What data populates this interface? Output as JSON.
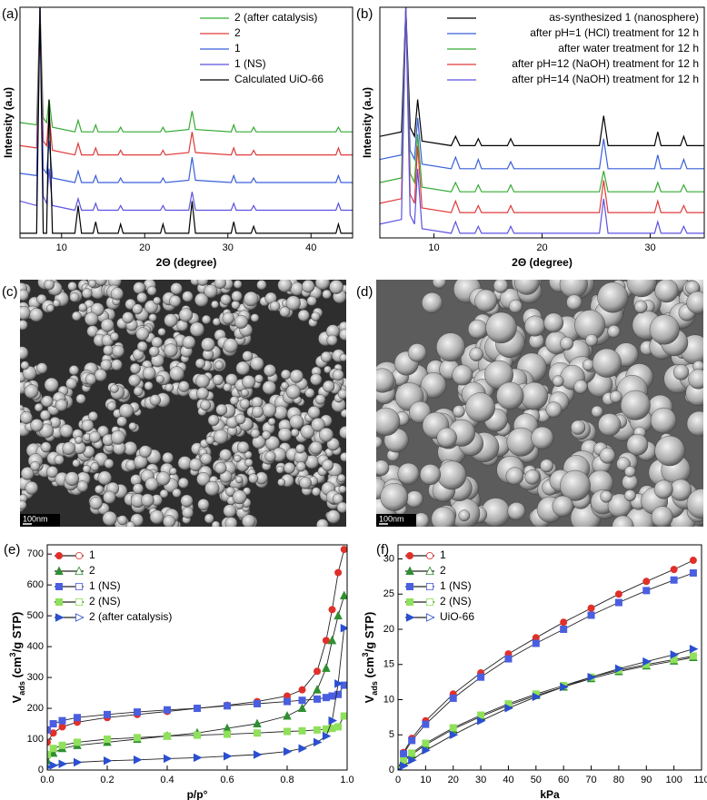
{
  "chart_data": [
    {
      "type": "line",
      "panel_label": "(a)",
      "xlabel": "2Θ (degree)",
      "ylabel": "Intensity (a.u)",
      "xlim": [
        5,
        45
      ],
      "ylim": [
        0,
        100
      ],
      "xticks": [
        10,
        20,
        30,
        40
      ],
      "legend_loc": "upper right",
      "x": [
        5,
        7,
        7.4,
        7.8,
        8.2,
        8.5,
        8.9,
        11.6,
        12.0,
        12.4,
        13.8,
        14.1,
        14.4,
        16.8,
        17.1,
        17.4,
        21.9,
        22.2,
        22.5,
        25.3,
        25.7,
        26.1,
        30.4,
        30.7,
        31.0,
        32.8,
        33.1,
        33.4,
        43.0,
        43.3,
        43.6,
        45
      ],
      "series": [
        {
          "name": "2 (after catalysis)",
          "color": "#33aa33",
          "values": [
            50,
            49,
            100,
            52,
            50,
            60,
            48,
            46,
            51,
            46,
            46,
            49,
            46,
            46,
            48,
            46,
            46,
            48,
            46,
            47,
            55,
            47,
            46,
            49,
            46,
            46,
            48,
            46,
            46,
            48,
            46,
            46
          ]
        },
        {
          "name": "2",
          "color": "#e03a3a",
          "values": [
            40,
            39,
            100,
            42,
            40,
            54,
            38,
            36,
            41,
            36,
            36,
            39,
            36,
            36,
            38,
            36,
            36,
            38,
            36,
            37,
            46,
            37,
            36,
            39,
            36,
            36,
            38,
            36,
            36,
            39,
            36,
            36
          ]
        },
        {
          "name": "1",
          "color": "#3a5fd9",
          "values": [
            28,
            27,
            100,
            30,
            28,
            42,
            26,
            24,
            29,
            24,
            24,
            27,
            24,
            24,
            26,
            24,
            24,
            26,
            24,
            25,
            35,
            25,
            24,
            27,
            24,
            24,
            26,
            24,
            24,
            27,
            24,
            24
          ]
        },
        {
          "name": "1 (NS)",
          "color": "#5b52e0",
          "values": [
            16,
            14,
            100,
            18,
            15,
            30,
            14,
            12,
            17,
            12,
            12,
            15,
            12,
            12,
            14,
            12,
            12,
            14,
            12,
            12,
            20,
            12,
            12,
            15,
            12,
            12,
            14,
            12,
            12,
            15,
            12,
            12
          ]
        },
        {
          "name": "Calculated UiO-66",
          "color": "#000000",
          "values": [
            2,
            2,
            100,
            2,
            2,
            60,
            2,
            2,
            14,
            2,
            2,
            7,
            2,
            2,
            6,
            2,
            2,
            6,
            2,
            2,
            16,
            2,
            2,
            7,
            2,
            2,
            5,
            2,
            2,
            6,
            2,
            2
          ]
        }
      ]
    },
    {
      "type": "line",
      "panel_label": "(b)",
      "xlabel": "2Θ (degree)",
      "ylabel": "Intensity (a.u)",
      "xlim": [
        5,
        35
      ],
      "ylim": [
        0,
        100
      ],
      "xticks": [
        10,
        20,
        30
      ],
      "legend_loc": "upper right",
      "x": [
        5,
        7,
        7.4,
        7.8,
        8.2,
        8.5,
        8.9,
        11.6,
        12.0,
        12.4,
        13.8,
        14.1,
        14.4,
        16.8,
        17.1,
        17.4,
        25.3,
        25.7,
        26.1,
        30.4,
        30.7,
        31.0,
        32.8,
        33.1,
        33.4,
        35
      ],
      "series": [
        {
          "name": "as-synthesized 1 (nanosphere)",
          "color": "#000000",
          "values": [
            44,
            46,
            100,
            48,
            44,
            60,
            42,
            40,
            44,
            40,
            40,
            43,
            40,
            40,
            43,
            40,
            40,
            53,
            40,
            40,
            46,
            40,
            40,
            44,
            40,
            40
          ]
        },
        {
          "name": "after pH=1 (HCl) treatment for 12 h",
          "color": "#3a5fd9",
          "values": [
            34,
            36,
            100,
            38,
            34,
            52,
            32,
            30,
            35,
            30,
            30,
            34,
            30,
            30,
            33,
            30,
            30,
            43,
            30,
            30,
            36,
            30,
            30,
            34,
            30,
            30
          ]
        },
        {
          "name": "after water treatment for 12 h",
          "color": "#33aa33",
          "values": [
            24,
            26,
            100,
            28,
            24,
            45,
            22,
            20,
            24,
            20,
            20,
            23,
            20,
            20,
            23,
            20,
            20,
            29,
            20,
            20,
            24,
            20,
            20,
            23,
            20,
            20
          ]
        },
        {
          "name": "after pH=12 (NaOH) treatment for 12 h",
          "color": "#e03a3a",
          "values": [
            15,
            17,
            100,
            19,
            15,
            40,
            13,
            11,
            16,
            11,
            11,
            14,
            11,
            11,
            14,
            11,
            11,
            25,
            11,
            11,
            16,
            11,
            11,
            14,
            11,
            11
          ]
        },
        {
          "name": "after pH=14 (NaOH) treatment for 12 h",
          "color": "#5b52e0",
          "values": [
            6,
            8,
            100,
            10,
            6,
            30,
            4,
            2,
            7,
            2,
            2,
            5,
            2,
            2,
            5,
            2,
            2,
            17,
            2,
            2,
            7,
            2,
            2,
            5,
            2,
            2
          ]
        }
      ]
    },
    {
      "type": "scatter-line",
      "panel_label": "(e)",
      "xlabel": "p/p°",
      "ylabel": [
        "V",
        "ads",
        " (cm",
        "3",
        "/g STP)"
      ],
      "xlim": [
        0,
        1
      ],
      "ylim": [
        0,
        730
      ],
      "line_color": "#222222",
      "legend_loc": "upper left",
      "xticks": [
        {
          "value": 0,
          "label": "0.0"
        },
        {
          "value": 0.2,
          "label": "0.2"
        },
        {
          "value": 0.4,
          "label": "0.4"
        },
        {
          "value": 0.6,
          "label": "0.6"
        },
        {
          "value": 0.8,
          "label": "0.8"
        },
        {
          "value": 1,
          "label": "1.0"
        }
      ],
      "yticks": [
        0,
        100,
        200,
        300,
        400,
        500,
        600,
        700
      ],
      "x": [
        0,
        0.02,
        0.05,
        0.1,
        0.2,
        0.3,
        0.4,
        0.5,
        0.6,
        0.7,
        0.8,
        0.85,
        0.9,
        0.93,
        0.95,
        0.97,
        0.99
      ],
      "series": [
        {
          "name": "1",
          "color": "#e0302a",
          "marker": "circle",
          "values": [
            90,
            120,
            140,
            155,
            170,
            180,
            190,
            200,
            210,
            222,
            240,
            260,
            320,
            420,
            520,
            640,
            715
          ]
        },
        {
          "name": "2",
          "color": "#2f8f2f",
          "marker": "triangle",
          "values": [
            30,
            55,
            70,
            80,
            90,
            100,
            110,
            120,
            135,
            150,
            175,
            200,
            260,
            330,
            420,
            500,
            565
          ]
        },
        {
          "name": "1 (NS)",
          "color": "#4a5fe0",
          "marker": "square",
          "values": [
            130,
            150,
            160,
            170,
            180,
            188,
            195,
            200,
            208,
            215,
            222,
            226,
            230,
            235,
            240,
            245,
            275
          ]
        },
        {
          "name": "2 (NS)",
          "color": "#8fe05a",
          "marker": "square",
          "values": [
            50,
            70,
            80,
            90,
            100,
            105,
            110,
            113,
            116,
            120,
            125,
            127,
            130,
            133,
            135,
            140,
            175
          ]
        },
        {
          "name": "2 (after catalysis)",
          "color": "#2a4fd0",
          "marker": "triangle-right",
          "values": [
            10,
            15,
            20,
            25,
            30,
            33,
            37,
            40,
            45,
            50,
            60,
            70,
            90,
            110,
            160,
            280,
            460
          ]
        }
      ]
    },
    {
      "type": "scatter-line",
      "panel_label": "(f)",
      "xlabel": "kPa",
      "ylabel": [
        "V",
        "ads",
        " (cm",
        "3",
        "/g STP)"
      ],
      "xlim": [
        0,
        110
      ],
      "ylim": [
        0,
        32
      ],
      "line_color": "#222222",
      "legend_loc": "upper left",
      "xticks": [
        0,
        10,
        20,
        30,
        40,
        50,
        60,
        70,
        80,
        90,
        100,
        110
      ],
      "yticks": [
        0,
        5,
        10,
        15,
        20,
        25,
        30
      ],
      "x": [
        0,
        2,
        5,
        10,
        20,
        30,
        40,
        50,
        60,
        70,
        80,
        90,
        100,
        107
      ],
      "series": [
        {
          "name": "1",
          "color": "#e0302a",
          "marker": "circle",
          "values": [
            0,
            2.5,
            4.5,
            7,
            10.8,
            13.8,
            16.5,
            18.8,
            21,
            23,
            25,
            26.8,
            28.5,
            29.8
          ]
        },
        {
          "name": "2",
          "color": "#2f8f2f",
          "marker": "triangle",
          "values": [
            0,
            1.2,
            2.2,
            3.6,
            5.8,
            7.6,
            9.2,
            10.6,
            11.8,
            13,
            14,
            14.8,
            15.5,
            16
          ]
        },
        {
          "name": "1 (NS)",
          "color": "#4a5fe0",
          "marker": "square",
          "values": [
            0,
            2.3,
            4.2,
            6.5,
            10.2,
            13.2,
            15.8,
            18,
            20,
            22,
            23.8,
            25.5,
            27,
            28
          ]
        },
        {
          "name": "2 (NS)",
          "color": "#8fe05a",
          "marker": "square",
          "values": [
            0,
            1.3,
            2.4,
            3.8,
            6,
            7.8,
            9.4,
            10.8,
            12,
            13.2,
            14.2,
            15,
            15.7,
            16.2
          ]
        },
        {
          "name": "UiO-66",
          "color": "#2a4fd0",
          "marker": "triangle-right",
          "values": [
            0,
            0.6,
            1.4,
            2.8,
            5,
            7,
            8.8,
            10.4,
            11.8,
            13.2,
            14.4,
            15.4,
            16.4,
            17.2
          ]
        }
      ]
    }
  ],
  "images": [
    {
      "panel_label": "(c)",
      "scale_bar": "100nm"
    },
    {
      "panel_label": "(d)",
      "scale_bar": "100nm"
    }
  ]
}
